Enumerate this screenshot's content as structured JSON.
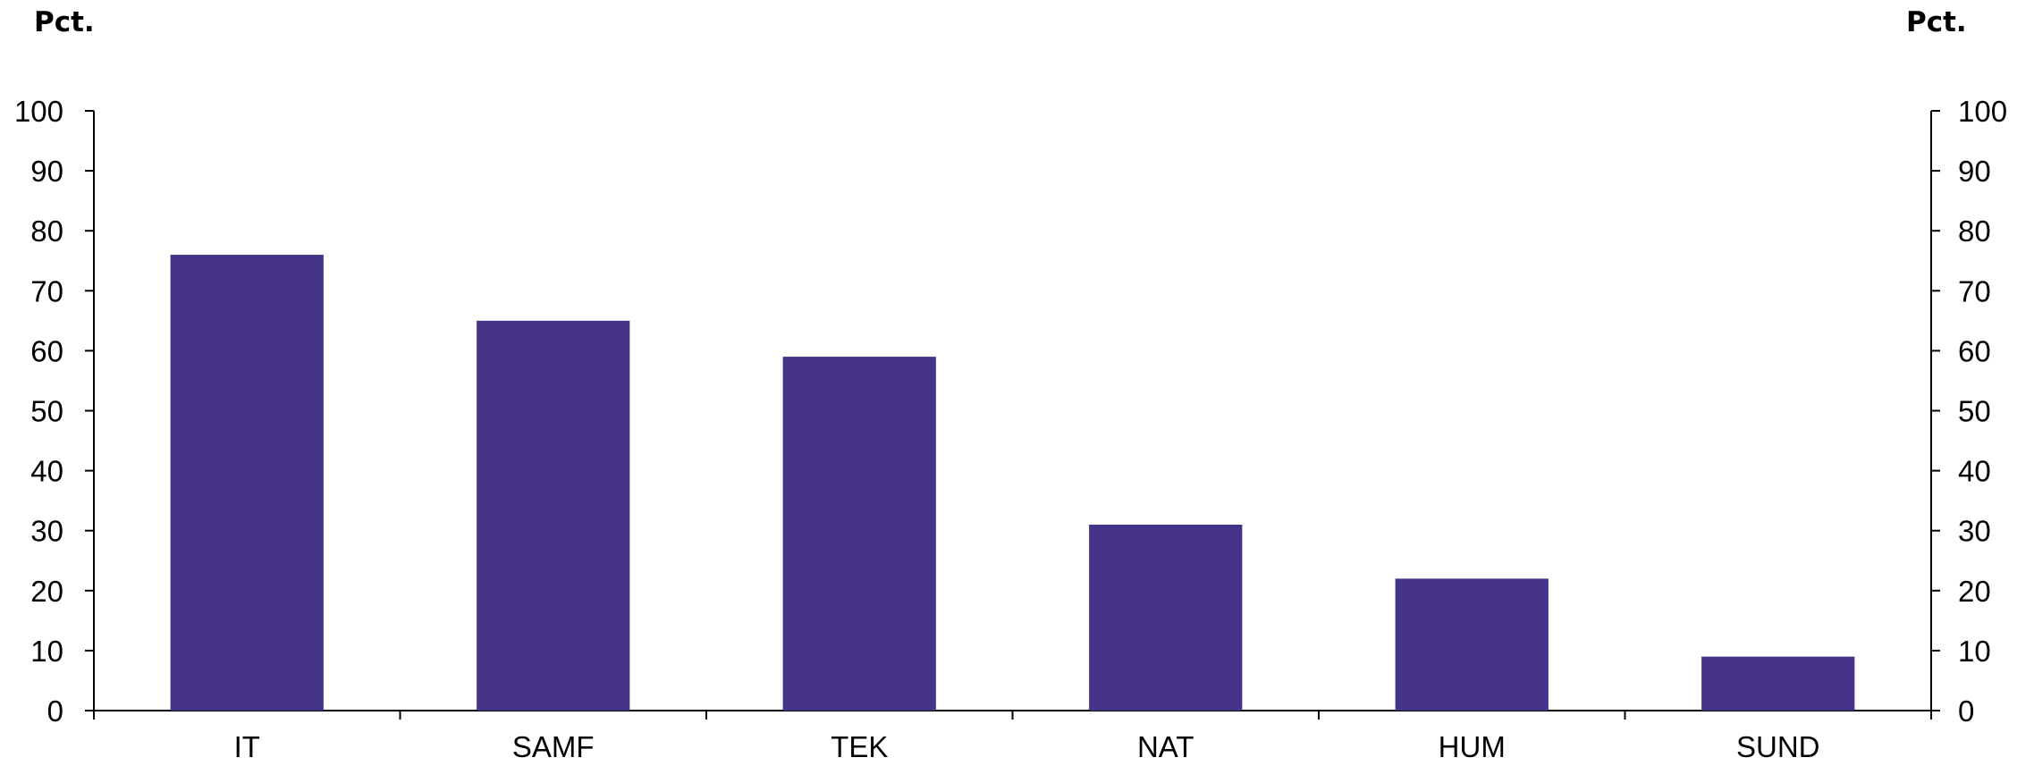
{
  "chart_data": {
    "type": "bar",
    "left_axis_unit": "Pct.",
    "right_axis_unit": "Pct.",
    "categories": [
      "IT",
      "SAMF",
      "TEK",
      "NAT",
      "HUM",
      "SUND"
    ],
    "values": [
      76,
      65,
      59,
      31,
      22,
      9
    ],
    "ylim": [
      0,
      100
    ],
    "yticks": [
      0,
      10,
      20,
      30,
      40,
      50,
      60,
      70,
      80,
      90,
      100
    ],
    "dual_y_axis": true,
    "grid": false,
    "legend": "none",
    "bar_color": "#46338A"
  }
}
